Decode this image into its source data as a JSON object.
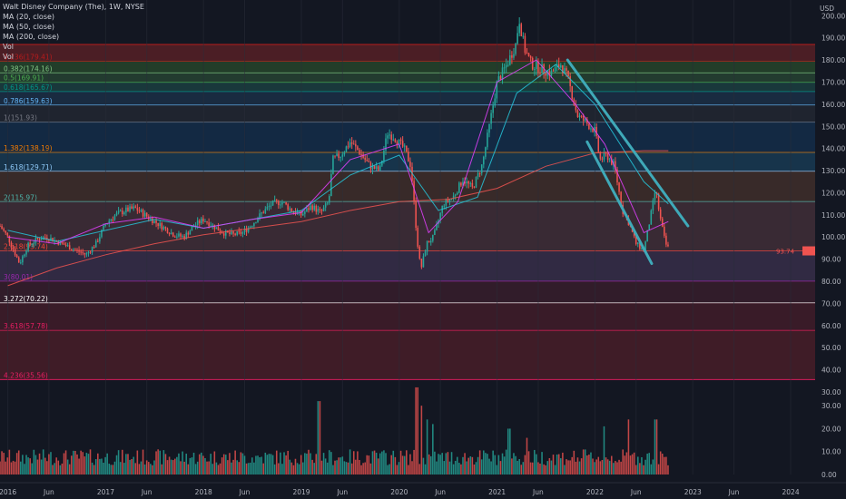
{
  "legend": {
    "symbol": "Walt Disney Company (The), 1W, NYSE",
    "ma20": "MA (20, close)",
    "ma50": "MA (50, close)",
    "ma200": "MA (200, close)",
    "vol1": "Vol",
    "vol2": "Vol"
  },
  "colors": {
    "background": "#131722",
    "up": "#26a69a",
    "down": "#ef5350",
    "trendline": "#3fa9b8",
    "ma20": "#e040fb",
    "ma50": "#26c6da",
    "ma200": "#ef5350"
  },
  "chart_data": [
    {
      "type": "candlestick",
      "title": "Walt Disney Company (The), 1W, NYSE",
      "currency_label": "USD",
      "price_axis_ticks": [
        200,
        190,
        180,
        170,
        160,
        150,
        140,
        130,
        120,
        110,
        100,
        90,
        80,
        70,
        60,
        50,
        40,
        30
      ],
      "price_axis_labels": [
        "200.00",
        "190.00",
        "180.00",
        "170.00",
        "160.00",
        "150.00",
        "140.00",
        "130.00",
        "120.00",
        "110.00",
        "100.00",
        "90.00",
        "80.00",
        "70.00",
        "60.00",
        "50.00",
        "40.00",
        "30.00"
      ],
      "ylim": [
        30,
        203
      ],
      "time_axis_labels": [
        "2016",
        "Jun",
        "2017",
        "Jun",
        "2018",
        "Jun",
        "2019",
        "Jun",
        "2020",
        "Jun",
        "2021",
        "Jun",
        "2022",
        "Jun",
        "2023",
        "Jun",
        "2024"
      ],
      "time_axis_positions": [
        2016.0,
        2016.42,
        2017.0,
        2017.42,
        2018.0,
        2018.42,
        2019.0,
        2019.42,
        2020.0,
        2020.42,
        2021.0,
        2021.42,
        2022.0,
        2022.42,
        2023.0,
        2023.42,
        2024.0
      ],
      "xlim": [
        2015.92,
        2024.25
      ],
      "price_path": [
        [
          2015.92,
          105
        ],
        [
          2016.0,
          100
        ],
        [
          2016.08,
          92
        ],
        [
          2016.12,
          88
        ],
        [
          2016.2,
          96
        ],
        [
          2016.3,
          99
        ],
        [
          2016.4,
          100
        ],
        [
          2016.5,
          98
        ],
        [
          2016.6,
          96
        ],
        [
          2016.7,
          94
        ],
        [
          2016.8,
          92
        ],
        [
          2016.9,
          97
        ],
        [
          2017.0,
          106
        ],
        [
          2017.1,
          110
        ],
        [
          2017.2,
          112
        ],
        [
          2017.3,
          113
        ],
        [
          2017.4,
          110
        ],
        [
          2017.5,
          107
        ],
        [
          2017.6,
          104
        ],
        [
          2017.7,
          101
        ],
        [
          2017.8,
          100
        ],
        [
          2017.9,
          105
        ],
        [
          2018.0,
          108
        ],
        [
          2018.1,
          105
        ],
        [
          2018.2,
          102
        ],
        [
          2018.3,
          101
        ],
        [
          2018.4,
          102
        ],
        [
          2018.5,
          106
        ],
        [
          2018.6,
          111
        ],
        [
          2018.7,
          115
        ],
        [
          2018.8,
          116
        ],
        [
          2018.9,
          112
        ],
        [
          2019.0,
          110
        ],
        [
          2019.1,
          114
        ],
        [
          2019.2,
          111
        ],
        [
          2019.28,
          116
        ],
        [
          2019.32,
          135
        ],
        [
          2019.4,
          137
        ],
        [
          2019.5,
          143
        ],
        [
          2019.6,
          138
        ],
        [
          2019.7,
          132
        ],
        [
          2019.8,
          130
        ],
        [
          2019.88,
          147
        ],
        [
          2019.95,
          145
        ],
        [
          2020.05,
          140
        ],
        [
          2020.12,
          132
        ],
        [
          2020.18,
          100
        ],
        [
          2020.22,
          85
        ],
        [
          2020.28,
          97
        ],
        [
          2020.35,
          100
        ],
        [
          2020.45,
          115
        ],
        [
          2020.55,
          118
        ],
        [
          2020.65,
          126
        ],
        [
          2020.75,
          122
        ],
        [
          2020.85,
          133
        ],
        [
          2020.92,
          150
        ],
        [
          2021.0,
          170
        ],
        [
          2021.1,
          178
        ],
        [
          2021.2,
          188
        ],
        [
          2021.22,
          200
        ],
        [
          2021.28,
          185
        ],
        [
          2021.35,
          178
        ],
        [
          2021.45,
          176
        ],
        [
          2021.55,
          174
        ],
        [
          2021.65,
          178
        ],
        [
          2021.72,
          172
        ],
        [
          2021.82,
          155
        ],
        [
          2021.9,
          152
        ],
        [
          2022.0,
          148
        ],
        [
          2022.05,
          135
        ],
        [
          2022.12,
          137
        ],
        [
          2022.2,
          132
        ],
        [
          2022.28,
          112
        ],
        [
          2022.35,
          106
        ],
        [
          2022.42,
          97
        ],
        [
          2022.5,
          94
        ],
        [
          2022.58,
          112
        ],
        [
          2022.62,
          122
        ],
        [
          2022.66,
          110
        ],
        [
          2022.72,
          97
        ],
        [
          2022.75,
          95
        ]
      ],
      "volume_axis_ticks": [
        30,
        20,
        10,
        0
      ],
      "volume_axis_labels": [
        "30.00",
        "20.00",
        "10.00",
        "0.00"
      ],
      "volume_ylim": [
        0,
        36
      ],
      "volume_spikes": [
        [
          2019.18,
          32
        ],
        [
          2020.18,
          38
        ],
        [
          2020.22,
          30
        ],
        [
          2020.28,
          24
        ],
        [
          2020.35,
          22
        ],
        [
          2021.12,
          20
        ],
        [
          2021.3,
          16
        ],
        [
          2022.1,
          21
        ],
        [
          2022.35,
          24
        ],
        [
          2022.62,
          24
        ]
      ],
      "fib_levels": [
        {
          "label": "0.236(179.41)",
          "value": 179.41,
          "fill": "#7a2528",
          "line": "#b71c1c"
        },
        {
          "label": "0.382(174.16)",
          "value": 174.16,
          "fill": "#2f5c2f",
          "line": "#81c784"
        },
        {
          "label": "0.5(169.91)",
          "value": 169.91,
          "fill": "#305a3a",
          "line": "#4caf50"
        },
        {
          "label": "0.618(165.67)",
          "value": 165.67,
          "fill": "#1f5351",
          "line": "#009688"
        },
        {
          "label": "0.786(159.63)",
          "value": 159.63,
          "fill": "#1f3c5a",
          "line": "#64b5f6"
        },
        {
          "label": "1(151.93)",
          "value": 151.93,
          "fill": "#2a2f3a",
          "line": "#787b86"
        },
        {
          "label": "1.382(138.19)",
          "value": 138.19,
          "fill": "#14395f",
          "line": "#f57c00"
        },
        {
          "label": "1.618(129.71)",
          "value": 129.71,
          "fill": "#1c4c6e",
          "line": "#90caf9"
        },
        {
          "label": "2(115.97)",
          "value": 115.97,
          "fill": "#573b30",
          "line": "#4db6ac"
        },
        {
          "label": "2.618(93.74)",
          "value": 93.74,
          "fill": "#5a3a44",
          "line": "#f44336"
        },
        {
          "label": "3(80.01)",
          "value": 80.01,
          "fill": "#4a3a5e",
          "line": "#9c27b0"
        },
        {
          "label": "3.272(70.22)",
          "value": 70.22,
          "fill": "#4a2032",
          "line": "#ffffff"
        },
        {
          "label": "3.618(57.78)",
          "value": 57.78,
          "fill": "#5a1f2e",
          "line": "#e91e63"
        },
        {
          "label": "4.236(35.56)",
          "value": 35.56,
          "fill": "#65202c",
          "line": "#e91e63"
        }
      ],
      "fib_top": 187,
      "current_price_label": "93.74",
      "trendlines": [
        [
          [
            2021.72,
            180
          ],
          [
            2022.95,
            105
          ]
        ],
        [
          [
            2021.92,
            143
          ],
          [
            2022.58,
            88
          ]
        ]
      ],
      "ma200_path": [
        [
          2016.0,
          78
        ],
        [
          2016.5,
          86
        ],
        [
          2017.0,
          92
        ],
        [
          2017.5,
          97
        ],
        [
          2018.0,
          101
        ],
        [
          2018.5,
          104
        ],
        [
          2019.0,
          107
        ],
        [
          2019.5,
          112
        ],
        [
          2020.0,
          116
        ],
        [
          2020.5,
          117
        ],
        [
          2021.0,
          122
        ],
        [
          2021.5,
          132
        ],
        [
          2022.0,
          138
        ],
        [
          2022.5,
          139
        ],
        [
          2022.75,
          139
        ]
      ],
      "ma50_path": [
        [
          2016.0,
          103
        ],
        [
          2016.5,
          98
        ],
        [
          2017.0,
          103
        ],
        [
          2017.5,
          108
        ],
        [
          2018.0,
          104
        ],
        [
          2018.5,
          108
        ],
        [
          2019.0,
          112
        ],
        [
          2019.5,
          128
        ],
        [
          2020.0,
          137
        ],
        [
          2020.4,
          112
        ],
        [
          2020.8,
          118
        ],
        [
          2021.2,
          165
        ],
        [
          2021.6,
          178
        ],
        [
          2022.0,
          160
        ],
        [
          2022.5,
          125
        ],
        [
          2022.75,
          115
        ]
      ],
      "ma20_path": [
        [
          2016.0,
          100
        ],
        [
          2016.5,
          97
        ],
        [
          2017.0,
          106
        ],
        [
          2017.5,
          109
        ],
        [
          2018.0,
          104
        ],
        [
          2018.5,
          108
        ],
        [
          2019.0,
          111
        ],
        [
          2019.5,
          135
        ],
        [
          2020.0,
          142
        ],
        [
          2020.3,
          102
        ],
        [
          2020.6,
          116
        ],
        [
          2021.0,
          170
        ],
        [
          2021.4,
          180
        ],
        [
          2021.8,
          160
        ],
        [
          2022.1,
          142
        ],
        [
          2022.5,
          102
        ],
        [
          2022.75,
          107
        ]
      ]
    }
  ]
}
